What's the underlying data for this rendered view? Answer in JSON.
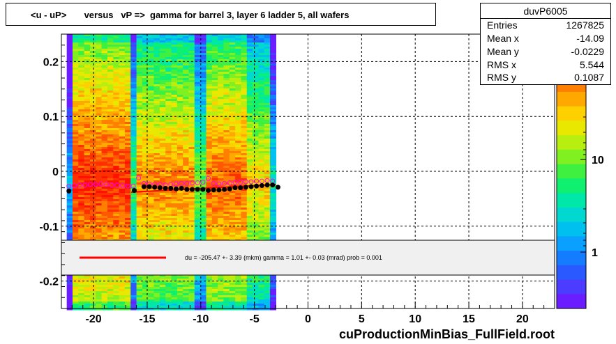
{
  "title": "<u - uP>       versus   vP =>  gamma for barrel 3, layer 6 ladder 5, all wafers",
  "stats": {
    "name": "duvP6005",
    "rows": [
      {
        "key": "Entries",
        "value": "1267825"
      },
      {
        "key": "Mean x",
        "value": "-14.09"
      },
      {
        "key": "Mean y",
        "value": "-0.0229"
      },
      {
        "key": "RMS x",
        "value": "5.544"
      },
      {
        "key": "RMS y",
        "value": "0.1087"
      }
    ]
  },
  "fit_label": "du = -205.47 +-  3.39 (mkm) gamma =    1.01 +-  0.03 (mrad) prob = 0.001",
  "footer": "cuProductionMinBias_FullField.root",
  "colors": {
    "fit_line": "#ff0000",
    "profile_black": "#000000",
    "profile_magenta": "#ff00ff"
  },
  "chart_data": {
    "type": "heatmap",
    "xlim": [
      -23,
      23
    ],
    "ylim": [
      -0.25,
      0.25
    ],
    "x_ticks": [
      -20,
      -15,
      -10,
      -5,
      0,
      5,
      10,
      15,
      20
    ],
    "y_ticks": [
      -0.2,
      -0.1,
      0,
      0.1,
      0.2
    ],
    "x_tick_labels": [
      "-20",
      "-15",
      "-10",
      "-5",
      "0",
      "5",
      "10",
      "15",
      "20"
    ],
    "y_tick_labels": [
      "-0.2",
      "-0.1",
      "0",
      "0.1",
      "0.2"
    ],
    "grid": true,
    "z_scale": "log",
    "z_tick_labels": [
      "1",
      "10"
    ],
    "populated_x_range": [
      -22.5,
      -3
    ],
    "fit_line": {
      "x": [
        -16.5,
        -3.0
      ],
      "y": [
        -0.038,
        -0.024
      ]
    },
    "profile_black": {
      "x": [
        -22.3,
        -16.2,
        -15.3,
        -14.8,
        -14.3,
        -13.8,
        -13.3,
        -12.8,
        -12.3,
        -11.8,
        -11.3,
        -10.8,
        -10.3,
        -9.8,
        -9.3,
        -8.8,
        -8.3,
        -7.8,
        -7.3,
        -6.8,
        -6.3,
        -5.8,
        -5.3,
        -4.8,
        -4.3,
        -3.8,
        -3.3,
        -2.8
      ],
      "y": [
        -0.036,
        -0.035,
        -0.028,
        -0.028,
        -0.029,
        -0.03,
        -0.031,
        -0.031,
        -0.032,
        -0.031,
        -0.033,
        -0.033,
        -0.033,
        -0.033,
        -0.035,
        -0.034,
        -0.034,
        -0.033,
        -0.032,
        -0.03,
        -0.03,
        -0.029,
        -0.028,
        -0.027,
        -0.026,
        -0.025,
        -0.025,
        -0.029
      ]
    },
    "profile_magenta": {
      "x": [
        -22.3,
        -21.8,
        -21.3,
        -20.8,
        -20.3,
        -19.8,
        -19.3,
        -18.8,
        -18.3,
        -17.8,
        -17.3,
        -16.8,
        -16.3,
        -15.8,
        -15.3,
        -14.8,
        -14.3,
        -13.8,
        -13.3,
        -12.8,
        -12.3,
        -11.8,
        -11.3,
        -10.8,
        -10.3,
        -9.8,
        -9.3,
        -8.8,
        -8.3,
        -7.8,
        -7.3,
        -6.8,
        -6.3,
        -5.8,
        -5.3,
        -4.8,
        -4.3,
        -3.8,
        -3.3
      ],
      "y": [
        -0.027,
        -0.026,
        -0.025,
        -0.025,
        -0.024,
        -0.024,
        -0.023,
        -0.024,
        -0.025,
        -0.025,
        -0.026,
        -0.027,
        -0.027,
        -0.012,
        -0.022,
        -0.023,
        -0.024,
        -0.024,
        -0.025,
        -0.024,
        -0.023,
        -0.022,
        -0.022,
        -0.021,
        -0.021,
        -0.02,
        -0.013,
        -0.022,
        -0.023,
        -0.022,
        -0.021,
        -0.02,
        -0.02,
        -0.019,
        -0.019,
        -0.018,
        -0.018,
        -0.017,
        -0.018
      ]
    }
  }
}
